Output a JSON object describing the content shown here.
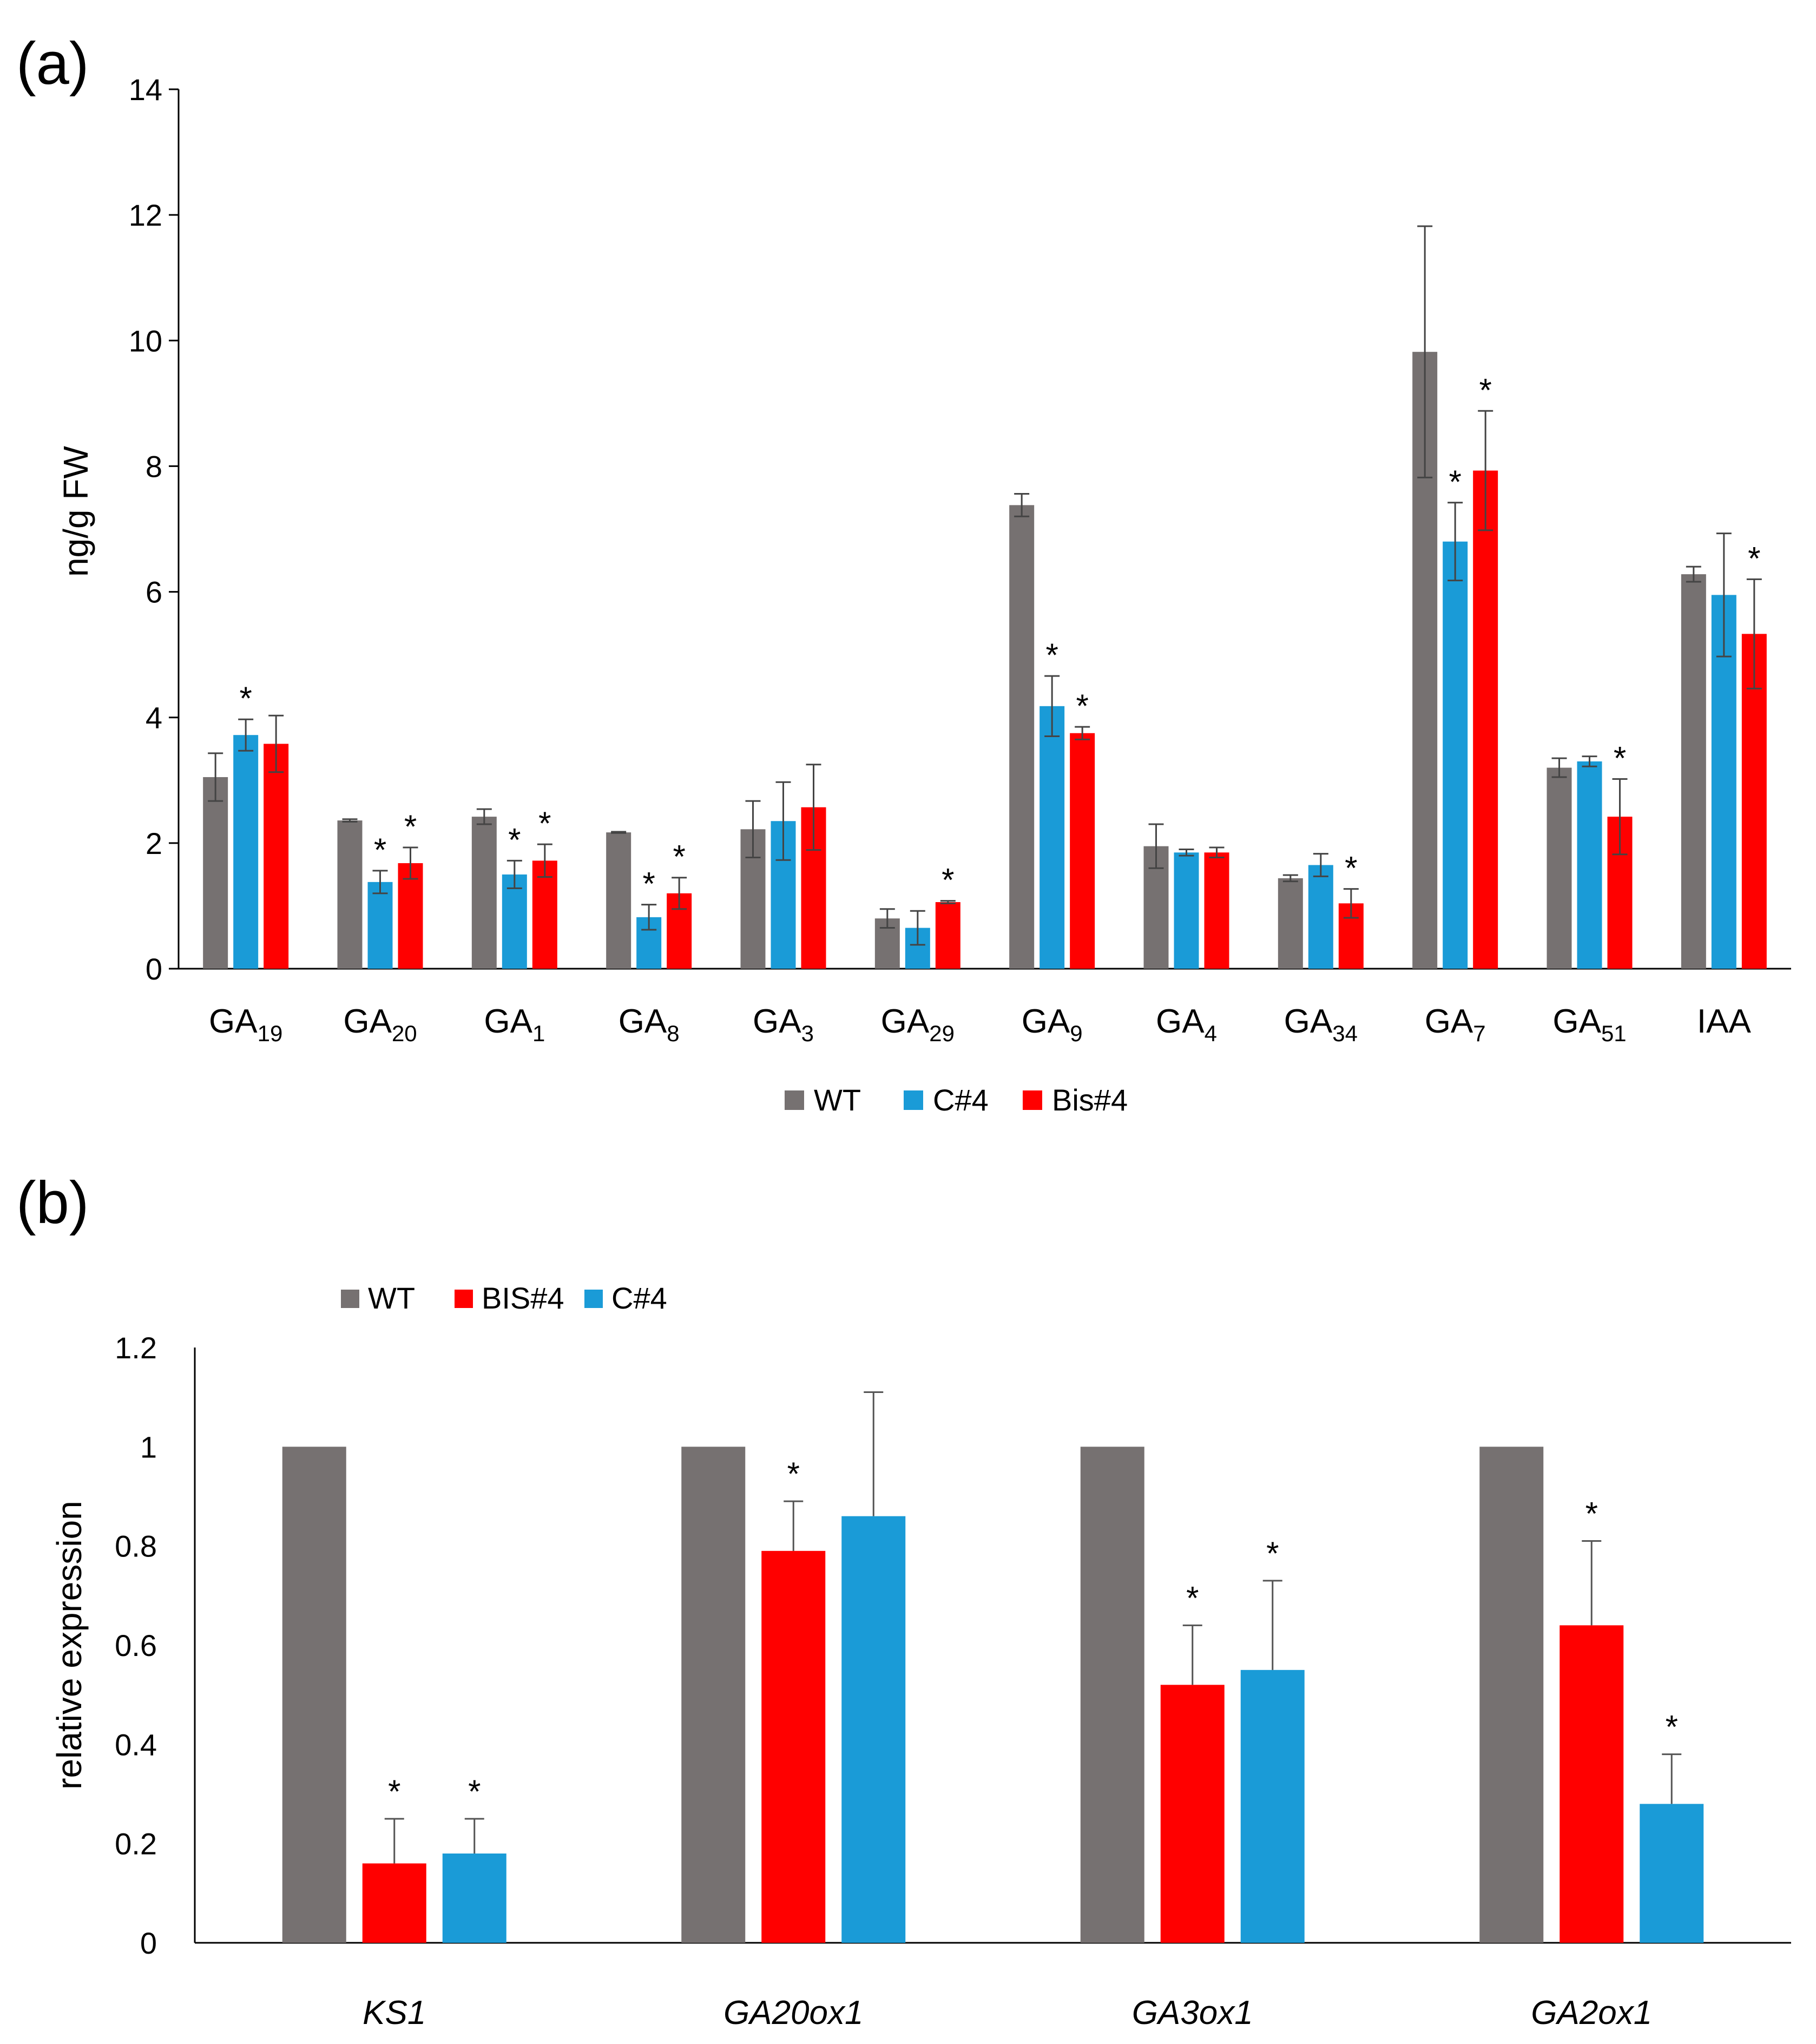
{
  "chart_data": [
    {
      "panel": "(a)",
      "type": "bar",
      "ylabel": "ng/g FW",
      "ylim": [
        0,
        14
      ],
      "yticks": [
        "0",
        "2",
        "4",
        "6",
        "8",
        "10",
        "12",
        "14"
      ],
      "categories": [
        {
          "base": "GA",
          "sub": "19"
        },
        {
          "base": "GA",
          "sub": "20"
        },
        {
          "base": "GA",
          "sub": "1"
        },
        {
          "base": "GA",
          "sub": "8"
        },
        {
          "base": "GA",
          "sub": "3"
        },
        {
          "base": "GA",
          "sub": "29"
        },
        {
          "base": "GA",
          "sub": "9"
        },
        {
          "base": "GA",
          "sub": "4"
        },
        {
          "base": "GA",
          "sub": "34"
        },
        {
          "base": "GA",
          "sub": "7"
        },
        {
          "base": "GA",
          "sub": "51"
        },
        {
          "base": "IAA",
          "sub": ""
        }
      ],
      "series": [
        {
          "name": "WT",
          "color": "#767171",
          "values": [
            3.05,
            2.36,
            2.42,
            2.17,
            2.22,
            0.8,
            7.38,
            1.95,
            1.44,
            9.82,
            3.2,
            6.28
          ],
          "errors": [
            0.38,
            0.02,
            0.12,
            0.01,
            0.45,
            0.15,
            0.18,
            0.35,
            0.05,
            2.0,
            0.15,
            0.12
          ],
          "sig": [
            false,
            false,
            false,
            false,
            false,
            false,
            false,
            false,
            false,
            false,
            false,
            false
          ]
        },
        {
          "name": "C#4",
          "color": "#1a9bd7",
          "values": [
            3.72,
            1.38,
            1.5,
            0.82,
            2.35,
            0.65,
            4.18,
            1.85,
            1.65,
            6.8,
            3.3,
            5.95
          ],
          "errors": [
            0.25,
            0.18,
            0.22,
            0.2,
            0.62,
            0.27,
            0.48,
            0.05,
            0.18,
            0.62,
            0.08,
            0.98
          ],
          "sig": [
            true,
            true,
            true,
            true,
            false,
            false,
            true,
            false,
            false,
            true,
            false,
            false
          ]
        },
        {
          "name": "Bis#4",
          "color": "#ff0000",
          "values": [
            3.58,
            1.68,
            1.72,
            1.2,
            2.57,
            1.06,
            3.75,
            1.85,
            1.04,
            7.93,
            2.42,
            5.33
          ],
          "errors": [
            0.45,
            0.25,
            0.26,
            0.25,
            0.68,
            0.02,
            0.1,
            0.08,
            0.23,
            0.95,
            0.6,
            0.87
          ],
          "sig": [
            false,
            true,
            true,
            true,
            false,
            true,
            true,
            false,
            true,
            true,
            true,
            true
          ]
        }
      ]
    },
    {
      "panel": "(b)",
      "type": "bar",
      "ylabel": "relative expression",
      "ylim": [
        0,
        1.2
      ],
      "yticks": [
        "0",
        "0.2",
        "0.4",
        "0.6",
        "0.8",
        "1",
        "1.2"
      ],
      "categories": [
        "KS1",
        "GA20ox1",
        "GA3ox1",
        "GA2ox1"
      ],
      "series": [
        {
          "name": "WT",
          "color": "#767171",
          "values": [
            1,
            1,
            1,
            1
          ],
          "errors": [
            0,
            0,
            0,
            0
          ],
          "sig": [
            false,
            false,
            false,
            false
          ]
        },
        {
          "name": "BIS#4",
          "color": "#ff0000",
          "values": [
            0.16,
            0.79,
            0.52,
            0.64
          ],
          "errors": [
            0.09,
            0.1,
            0.12,
            0.17
          ],
          "sig": [
            true,
            true,
            true,
            true
          ]
        },
        {
          "name": "C#4",
          "color": "#1a9bd7",
          "values": [
            0.18,
            0.86,
            0.55,
            0.28
          ],
          "errors": [
            0.07,
            0.25,
            0.18,
            0.1
          ],
          "sig": [
            true,
            false,
            true,
            true
          ]
        }
      ]
    }
  ],
  "star_symbol": "*"
}
